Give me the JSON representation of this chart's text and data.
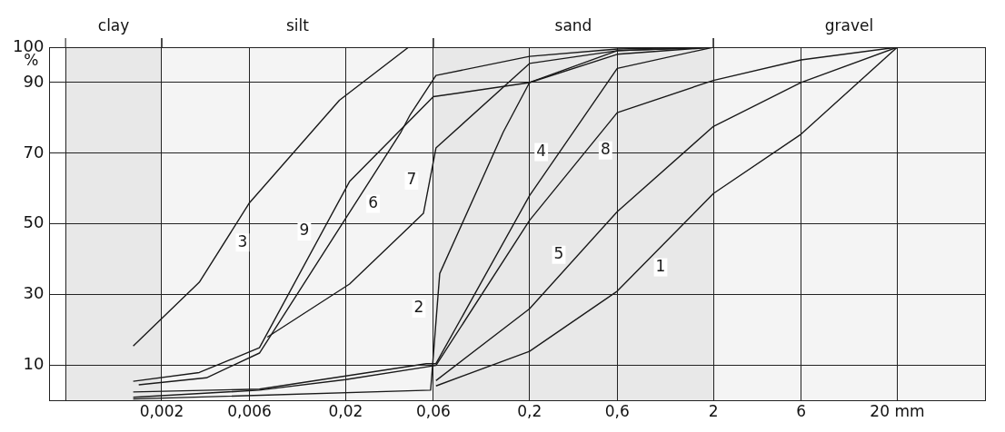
{
  "chart_data": {
    "type": "line",
    "ylabel": "%",
    "log": "x",
    "xlim": [
      0.00049,
      60
    ],
    "ylim": [
      0,
      100
    ],
    "xticks": [
      {
        "value": 0.0006,
        "label": null
      },
      {
        "value": 0.002,
        "label": "0,002"
      },
      {
        "value": 0.006,
        "label": "0,006"
      },
      {
        "value": 0.02,
        "label": "0,02"
      },
      {
        "value": 0.06,
        "label": "0,06"
      },
      {
        "value": 0.2,
        "label": "0,2"
      },
      {
        "value": 0.6,
        "label": "0,6"
      },
      {
        "value": 2,
        "label": "2"
      },
      {
        "value": 6,
        "label": "6"
      },
      {
        "value": 20,
        "label": "20 mm"
      }
    ],
    "yticks": [
      10,
      30,
      50,
      70,
      90,
      100
    ],
    "grid": true,
    "legend": false,
    "marker": "none",
    "bands": [
      {
        "axis": "x",
        "from": 0.0006,
        "to": 0.002,
        "label": "clay",
        "color": "#e8e8e8"
      },
      {
        "axis": "x",
        "from": 0.002,
        "to": 0.06,
        "label": "silt",
        "color": "#f4f4f4"
      },
      {
        "axis": "x",
        "from": 0.06,
        "to": 2,
        "label": "sand",
        "color": "#e8e8e8"
      },
      {
        "axis": "x",
        "from": 2,
        "to": 60,
        "label": "gravel",
        "color": "#f4f4f4"
      }
    ],
    "series": [
      {
        "name": "1",
        "color": "#1a1a1a",
        "x": [
          0.062,
          0.2,
          0.6,
          2,
          6,
          20
        ],
        "values": [
          4.2,
          14,
          31,
          58.6,
          75.4,
          100
        ]
      },
      {
        "name": "2",
        "color": "#1a1a1a",
        "x": [
          0.0014,
          0.058,
          0.065,
          0.144,
          0.2,
          0.6,
          2
        ],
        "values": [
          0.5,
          3,
          36,
          76,
          90,
          98,
          100
        ]
      },
      {
        "name": "3",
        "color": "#1a1a1a",
        "x": [
          0.0014,
          0.0032,
          0.006,
          0.0185,
          0.044,
          0.058
        ],
        "values": [
          15.5,
          33.5,
          56,
          85,
          100,
          100
        ]
      },
      {
        "name": "4",
        "color": "#1a1a1a",
        "x": [
          0.0014,
          0.0068,
          0.055,
          0.062,
          0.2,
          0.6,
          2
        ],
        "values": [
          2.5,
          3.3,
          10.5,
          10.5,
          58,
          94,
          100
        ]
      },
      {
        "name": "5",
        "color": "#1a1a1a",
        "x": [
          0.062,
          0.2,
          0.6,
          2,
          6,
          20
        ],
        "values": [
          5.7,
          26,
          53.5,
          77.6,
          90,
          100
        ]
      },
      {
        "name": "6",
        "color": "#1a1a1a",
        "x": [
          0.0015,
          0.0035,
          0.0068,
          0.04,
          0.045,
          0.062,
          0.2,
          0.6,
          2
        ],
        "values": [
          4.5,
          6.5,
          13.5,
          76,
          81,
          92,
          97.4,
          99.5,
          100
        ]
      },
      {
        "name": "7",
        "color": "#1a1a1a",
        "x": [
          0.0075,
          0.021,
          0.053,
          0.062,
          0.2,
          0.6,
          2
        ],
        "values": [
          18,
          33,
          53,
          71.5,
          95.4,
          99,
          100
        ]
      },
      {
        "name": "8",
        "color": "#1a1a1a",
        "x": [
          0.0014,
          0.0068,
          0.02,
          0.062,
          0.2,
          0.6,
          2,
          6,
          20
        ],
        "values": [
          1,
          3,
          6,
          10,
          51,
          81.5,
          90.6,
          96.4,
          100
        ]
      },
      {
        "name": "9",
        "color": "#1a1a1a",
        "x": [
          0.0014,
          0.0032,
          0.0068,
          0.021,
          0.06,
          0.2,
          0.6,
          2
        ],
        "values": [
          5.5,
          8,
          15,
          62,
          86,
          90,
          99,
          100
        ]
      }
    ]
  }
}
